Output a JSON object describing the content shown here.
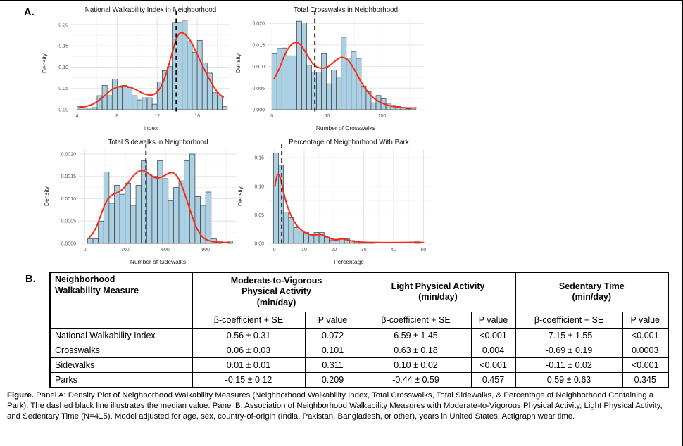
{
  "panel_a_label": "A.",
  "panel_b_label": "B.",
  "colors": {
    "bar_fill": "#abd0e4",
    "bar_stroke": "#3b3b3b",
    "curve": "#fc2a14",
    "grid_major": "#e4e4e4",
    "grid_minor": "#f1f1f1",
    "median": "#000000",
    "axis_text": "#555555",
    "title_text": "#111111"
  },
  "chart_data": [
    {
      "type": "bar",
      "subtype": "histogram-with-density",
      "title": "National Walkability Index in Neighborhood",
      "xlabel": "Index",
      "ylabel": "Density",
      "xlim": [
        3.4,
        19.3
      ],
      "ylim": [
        0,
        0.218
      ],
      "xticks": [
        4,
        8,
        12,
        16
      ],
      "yticks": [
        0,
        0.05,
        0.1,
        0.15,
        0.2
      ],
      "ytick_labels": [
        "0.00",
        "0.05",
        "0.10",
        "0.15",
        "0.20"
      ],
      "bin_start": 4,
      "bin_width": 0.5,
      "values": [
        0.008,
        0.008,
        0.004,
        0.005,
        0.033,
        0.057,
        0.033,
        0.072,
        0.053,
        0.057,
        0.052,
        0.033,
        0.023,
        0.028,
        0.028,
        0.013,
        0.065,
        0.092,
        0.101,
        0.205,
        0.205,
        0.21,
        0.16,
        0.135,
        0.163,
        0.11,
        0.086,
        0.04,
        0.033,
        0.008
      ],
      "median_line": 13.9,
      "curve": {
        "x": [
          4.2,
          5.0,
          5.8,
          6.6,
          7.4,
          8.2,
          8.8,
          9.6,
          10.4,
          11.0,
          11.6,
          12.2,
          12.8,
          13.4,
          13.9,
          14.3,
          14.8,
          15.4,
          16.0,
          16.6,
          17.2,
          17.8,
          18.3,
          18.6
        ],
        "y": [
          0.005,
          0.008,
          0.015,
          0.03,
          0.047,
          0.055,
          0.056,
          0.051,
          0.04,
          0.035,
          0.034,
          0.045,
          0.075,
          0.125,
          0.168,
          0.183,
          0.178,
          0.16,
          0.13,
          0.1,
          0.072,
          0.048,
          0.034,
          0.03
        ]
      },
      "margin_left": 46
    },
    {
      "type": "bar",
      "subtype": "histogram-with-density",
      "title": "Total Crosswalks in Neighborhood",
      "xlabel": "Number of Crosswalks",
      "ylabel": "Density",
      "xlim": [
        -4,
        138
      ],
      "ylim": [
        0,
        0.0215
      ],
      "xticks": [
        0,
        50,
        100
      ],
      "yticks": [
        0,
        0.005,
        0.01,
        0.015,
        0.02
      ],
      "ytick_labels": [
        "0.000",
        "0.005",
        "0.010",
        "0.015",
        "0.020"
      ],
      "bin_start": 0,
      "bin_width": 4.5,
      "values": [
        0.013,
        0.0142,
        0.0143,
        0.0125,
        0.0125,
        0.0205,
        0.0201,
        0.0103,
        0.0087,
        0.0087,
        0.013,
        0.006,
        0.0092,
        0.0076,
        0.0168,
        0.012,
        0.0135,
        0.0119,
        0.0055,
        0.0042,
        0.0016,
        0.0033,
        0.0025,
        0.0015,
        0.001,
        0.0008,
        0.0005,
        0.0002,
        0.0005
      ],
      "median_line": 39,
      "curve": {
        "x": [
          2,
          6,
          10,
          14,
          18,
          21,
          25,
          29,
          33,
          37,
          41,
          45,
          49,
          53,
          57,
          61,
          64,
          68,
          72,
          76,
          80,
          85,
          90,
          95,
          100,
          108,
          116,
          124,
          131
        ],
        "y": [
          0.0072,
          0.009,
          0.0118,
          0.014,
          0.0152,
          0.0157,
          0.0154,
          0.014,
          0.0122,
          0.0106,
          0.0098,
          0.0096,
          0.0097,
          0.0103,
          0.0112,
          0.012,
          0.0122,
          0.0118,
          0.0106,
          0.0088,
          0.0068,
          0.0048,
          0.0032,
          0.0022,
          0.0015,
          0.0008,
          0.0005,
          0.0004,
          0.0004
        ]
      },
      "margin_left": 50
    },
    {
      "type": "bar",
      "subtype": "histogram-with-density",
      "title": "Total Sidewalks in Neighborhood",
      "xlabel": "Number of Sidewalks",
      "ylabel": "Density",
      "xlim": [
        -45,
        1135
      ],
      "ylim": [
        0,
        0.00211
      ],
      "xticks": [
        0,
        300,
        600,
        900
      ],
      "yticks": [
        0,
        0.0005,
        0.001,
        0.0015,
        0.002
      ],
      "ytick_labels": [
        "0.0000",
        "0.0005",
        "0.0010",
        "0.0015",
        "0.0020"
      ],
      "bin_start": 20,
      "bin_width": 40,
      "values": [
        0.0001,
        0.0001,
        0.0005,
        0.0016,
        0.0009,
        0.0013,
        0.0011,
        0.00135,
        0.00085,
        0.0013,
        0.00185,
        0.00155,
        0.0015,
        0.00185,
        0.00145,
        0.00095,
        0.00125,
        0.0014,
        0.00185,
        0.002,
        0.00105,
        0.00085,
        0.00115,
        0.0001,
        5e-05,
        0.0,
        5e-05
      ],
      "median_line": 455,
      "curve": {
        "x": [
          30,
          70,
          110,
          150,
          190,
          230,
          270,
          310,
          350,
          390,
          420,
          450,
          480,
          510,
          540,
          570,
          600,
          630,
          655,
          685,
          715,
          745,
          775,
          805,
          835,
          870,
          910,
          960,
          1020,
          1080
        ],
        "y": [
          0.00012,
          0.00025,
          0.00055,
          0.0009,
          0.00107,
          0.00112,
          0.00118,
          0.0013,
          0.00148,
          0.0016,
          0.00164,
          0.00162,
          0.00155,
          0.00148,
          0.00146,
          0.00148,
          0.00153,
          0.00158,
          0.00159,
          0.00152,
          0.00135,
          0.0011,
          0.00082,
          0.00055,
          0.00032,
          0.00015,
          7e-05,
          3e-05,
          2e-05,
          2e-05
        ]
      },
      "margin_left": 54
    },
    {
      "type": "bar",
      "subtype": "histogram-with-density",
      "title": "Percentage of Neighborhood With Park",
      "xlabel": "Percentage",
      "ylabel": "Density",
      "xlim": [
        -2.5,
        52.5
      ],
      "ylim": [
        0,
        0.165
      ],
      "xticks": [
        0,
        10,
        20,
        30,
        40,
        50
      ],
      "yticks": [
        0,
        0.05,
        0.1,
        0.15
      ],
      "ytick_labels": [
        "0.00",
        "0.05",
        "0.10",
        "0.15"
      ],
      "bin_start": -0.3,
      "bin_width": 1.7,
      "values": [
        0.158,
        0.137,
        0.055,
        0.045,
        0.028,
        0.022,
        0.019,
        0.016,
        0.019,
        0.019,
        0.011,
        0.006,
        0.005,
        0.008,
        0.008,
        0.005,
        0.003,
        0.002,
        0.001,
        0.0005,
        0,
        0,
        0,
        0,
        0,
        0,
        0,
        0,
        0.004
      ],
      "median_line": 2.5,
      "curve": {
        "x": [
          0.2,
          0.8,
          1.5,
          2.2,
          3.0,
          4.0,
          5.0,
          6.0,
          7.5,
          9.0,
          10.5,
          12.0,
          13.5,
          15.0,
          16.0,
          17.5,
          19.0,
          20.5,
          22.0,
          23.0,
          24.5,
          26.0,
          28.0,
          31.0,
          35.0,
          39.0,
          43.0,
          46.0,
          48.5,
          50.0
        ],
        "y": [
          0.1,
          0.12,
          0.122,
          0.112,
          0.092,
          0.071,
          0.056,
          0.044,
          0.031,
          0.023,
          0.018,
          0.015,
          0.0145,
          0.0158,
          0.0152,
          0.012,
          0.008,
          0.0062,
          0.0075,
          0.008,
          0.006,
          0.004,
          0.0025,
          0.0018,
          0.0015,
          0.0014,
          0.0016,
          0.0019,
          0.0017,
          0.0015
        ]
      },
      "margin_left": 46
    }
  ],
  "table": {
    "col1_header_lines": [
      "Neighborhood",
      "Walkability Measure"
    ],
    "groups": [
      {
        "line1": "Moderate-to-Vigorous",
        "line2": "Physical Activity",
        "unit": "(min/day)"
      },
      {
        "line1": "Light Physical Activity",
        "line2": "",
        "unit": "(min/day)"
      },
      {
        "line1": "Sedentary Time",
        "line2": "",
        "unit": "(min/day)"
      }
    ],
    "subheaders": [
      "β-coefficient + SE",
      "P value"
    ],
    "rows": [
      {
        "measure": "National Walkability Index",
        "cells": [
          "0.56 ± 0.31",
          "0.072",
          "6.59 ± 1.45",
          "<0.001",
          "-7.15 ± 1.55",
          "<0.001"
        ]
      },
      {
        "measure": "Crosswalks",
        "cells": [
          "0.06 ± 0.03",
          "0.101",
          "0.63 ± 0.18",
          "0.004",
          "-0.69 ± 0.19",
          "0.0003"
        ]
      },
      {
        "measure": "Sidewalks",
        "cells": [
          "0.01 ± 0.01",
          "0.311",
          "0.10 ± 0.02",
          "<0.001",
          "-0.11 ± 0.02",
          "<0.001"
        ]
      },
      {
        "measure": "Parks",
        "cells": [
          "-0.15 ± 0.12",
          "0.209",
          "-0.44 ± 0.59",
          "0.457",
          "0.59 ± 0.63",
          "0.345"
        ]
      }
    ]
  },
  "caption": {
    "prefix": "Figure.",
    "body": " Panel A: Density Plot of Neighborhood Walkability Measures (Neighborhood Walkability Index, Total Crosswalks, Total Sidewalks, & Percentage of Neighborhood Containing a Park). The dashed black line illustrates the median value. Panel B: Association of Neighborhood Walkability Measures with Moderate-to-Vigorous Physical Activity, Light Physical Activity, and Sedentary Time (N=415). Model adjusted for age, sex, country-of-origin (India, Pakistan, Bangladesh, or other), years in United States, Actigraph wear time."
  }
}
